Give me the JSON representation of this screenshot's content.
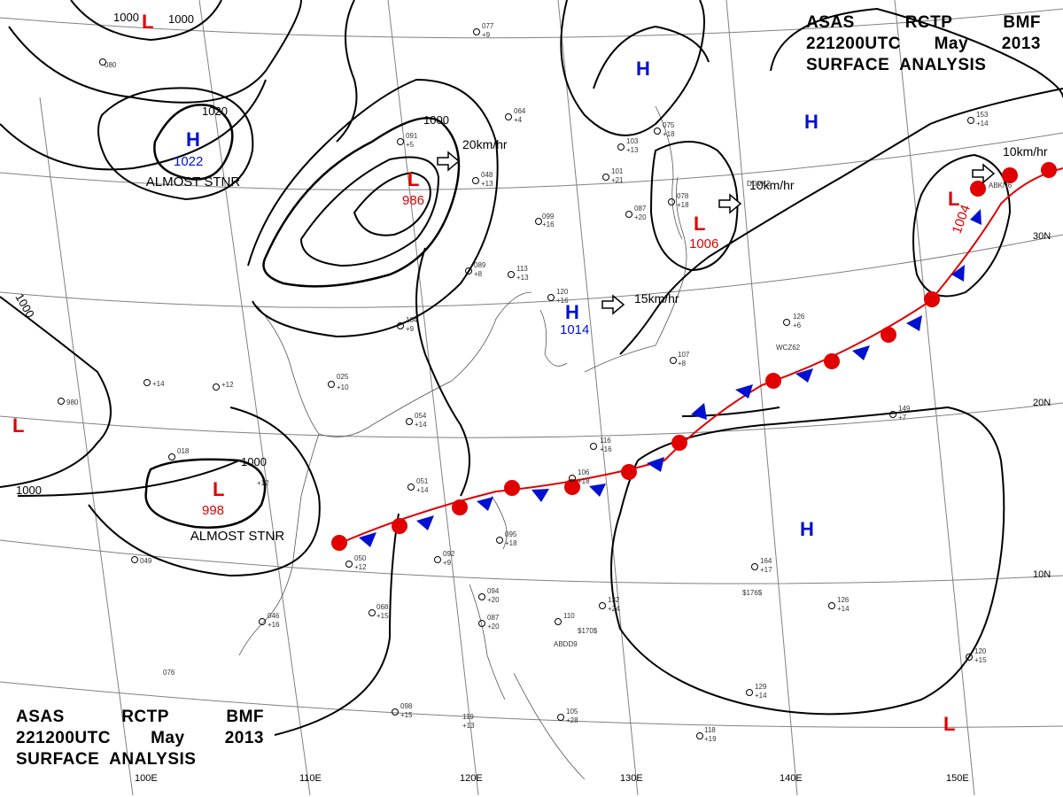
{
  "header": {
    "line1": [
      "ASAS",
      "RCTP",
      "BMF"
    ],
    "line2": [
      "221200UTC",
      "May",
      "2013"
    ],
    "line3": "SURFACE  ANALYSIS"
  },
  "colors": {
    "isobar": "#000000",
    "low": "#e00000",
    "high": "#0010d0",
    "warm_front": "#e00000",
    "cold_front": "#0010d0",
    "coast": "#555555",
    "grid": "#808080"
  },
  "longitude_labels": [
    "100E",
    "110E",
    "120E",
    "130E",
    "140E",
    "150E"
  ],
  "latitude_labels": [
    "30N",
    "20N",
    "10N"
  ],
  "isobar_labels": [
    "1000",
    "1000",
    "1000",
    "1020",
    "1000",
    "1000",
    "1000"
  ],
  "pressure_centers": [
    {
      "type": "L",
      "value": ""
    },
    {
      "type": "L",
      "value": "986"
    },
    {
      "type": "H",
      "value": "1022"
    },
    {
      "type": "H",
      "value": ""
    },
    {
      "type": "H",
      "value": ""
    },
    {
      "type": "L",
      "value": "1006"
    },
    {
      "type": "L",
      "value": "1004"
    },
    {
      "type": "H",
      "value": "1014"
    },
    {
      "type": "L",
      "value": "998"
    },
    {
      "type": "L",
      "value": ""
    },
    {
      "type": "L",
      "value": ""
    },
    {
      "type": "H",
      "value": ""
    }
  ],
  "notes": [
    {
      "text": "ALMOST STNR"
    },
    {
      "text": "ALMOST STNR"
    }
  ],
  "motion_vectors": [
    "20km/hr",
    "10km/hr",
    "10km/hr",
    "15km/hr"
  ],
  "station_obs": [
    "080",
    "099",
    "+16",
    "+12",
    "+10",
    "025",
    "054",
    "+14",
    "051",
    "+14",
    "050",
    "+12",
    "068",
    "+15",
    "046",
    "+16",
    "076",
    "098",
    "+15",
    "119",
    "+13",
    "106",
    "+18",
    "116",
    "+16",
    "107",
    "+8",
    "126",
    "+6",
    "149",
    "+7",
    "164",
    "+17",
    "126",
    "+14",
    "120",
    "+15",
    "129",
    "+14",
    "118",
    "+19",
    "132",
    "+24",
    "110",
    "105",
    "+28",
    "094",
    "+20",
    "087",
    "+20",
    "092",
    "+9",
    "095",
    "+18",
    "018",
    "+12",
    "049",
    "980",
    "+14",
    "091",
    "+5",
    "089",
    "+8",
    "113",
    "+13",
    "120",
    "+16",
    "104",
    "+9",
    "078",
    "+18",
    "087",
    "+20",
    "101",
    "+21",
    "103",
    "+13",
    "075",
    "+18",
    "064",
    "+4",
    "048",
    "+13",
    "077",
    "+9",
    "153",
    "+14",
    "WCZ62",
    "DDVK2",
    "ABKN6",
    "ABDD9",
    "$176$",
    "$170$"
  ]
}
